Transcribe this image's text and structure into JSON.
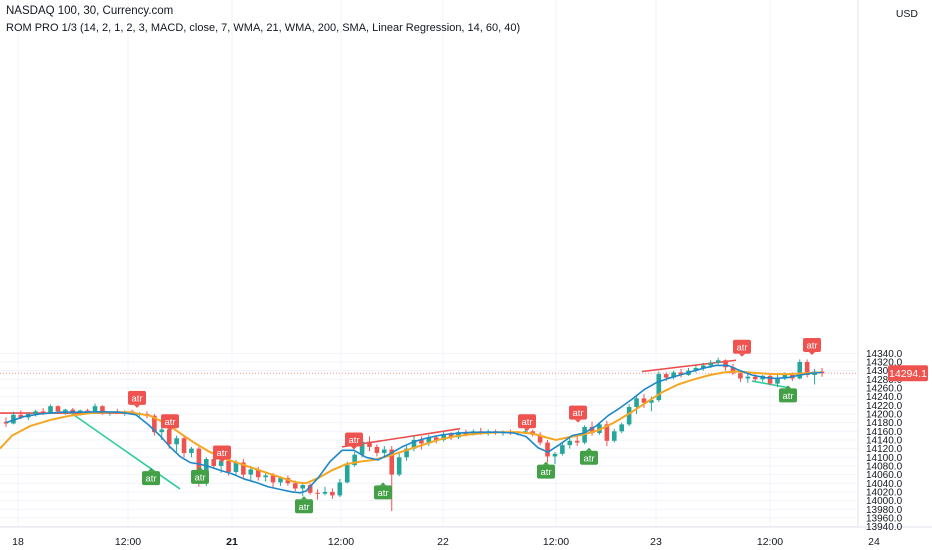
{
  "header": {
    "symbol_title": "NASDAQ 100, 30, Currency.com",
    "indicator_label": "ROM PRO 1/3 (14, 2, 1, 2, 3, MACD, close, 7, WMA, 21, WMA, 200, SMA, Linear Regression, 14, 60, 40)",
    "currency": "USD"
  },
  "colors": {
    "up": "#26a69a",
    "down": "#ef5350",
    "wma_fast": "#1e88c8",
    "wma_slow": "#f5a623",
    "grid": "#f0f3fa",
    "axis_text": "#131722",
    "price_line": "#ef5350",
    "atr_up_badge": "#43a047",
    "atr_down_badge": "#ef5350"
  },
  "chart_data": {
    "type": "candlestick",
    "timeframe": "30",
    "y_axis": {
      "ticks": [
        "13940.0",
        "13960.0",
        "13980.0",
        "14000.0",
        "14020.0",
        "14040.0",
        "14060.0",
        "14080.0",
        "14100.0",
        "14120.0",
        "14140.0",
        "14160.0",
        "14180.0",
        "14200.0",
        "14220.0",
        "14240.0",
        "14260.0",
        "14280.0",
        "14300.0",
        "14320.0",
        "14340.0"
      ],
      "range": [
        13940,
        14346
      ]
    },
    "x_axis": {
      "ticks": [
        {
          "label": "18",
          "bold": false
        },
        {
          "label": "12:00",
          "bold": false
        },
        {
          "label": "21",
          "bold": true
        },
        {
          "label": "12:00",
          "bold": false
        },
        {
          "label": "22",
          "bold": false
        },
        {
          "label": "12:00",
          "bold": false
        },
        {
          "label": "23",
          "bold": false
        },
        {
          "label": "12:00",
          "bold": false
        },
        {
          "label": "24",
          "bold": false
        }
      ]
    },
    "last_price": "14294.1",
    "candles": [
      [
        14182,
        14192,
        14170,
        14178
      ],
      [
        14178,
        14205,
        14176,
        14198
      ],
      [
        14198,
        14208,
        14188,
        14192
      ],
      [
        14192,
        14204,
        14186,
        14200
      ],
      [
        14200,
        14210,
        14194,
        14206
      ],
      [
        14206,
        14214,
        14198,
        14202
      ],
      [
        14202,
        14222,
        14200,
        14218
      ],
      [
        14218,
        14220,
        14200,
        14206
      ],
      [
        14206,
        14212,
        14198,
        14210
      ],
      [
        14210,
        14214,
        14202,
        14204
      ],
      [
        14204,
        14210,
        14196,
        14208
      ],
      [
        14208,
        14212,
        14200,
        14206
      ],
      [
        14206,
        14224,
        14204,
        14218
      ],
      [
        14218,
        14220,
        14198,
        14202
      ],
      [
        14202,
        14206,
        14196,
        14204
      ],
      [
        14204,
        14212,
        14200,
        14202
      ],
      [
        14202,
        14208,
        14196,
        14206
      ],
      [
        14206,
        14210,
        14198,
        14200
      ],
      [
        14200,
        14204,
        14194,
        14200
      ],
      [
        14200,
        14206,
        14190,
        14196
      ],
      [
        14196,
        14200,
        14150,
        14158
      ],
      [
        14158,
        14172,
        14140,
        14164
      ],
      [
        14164,
        14168,
        14120,
        14130
      ],
      [
        14130,
        14150,
        14112,
        14144
      ],
      [
        14144,
        14150,
        14100,
        14110
      ],
      [
        14110,
        14124,
        14100,
        14120
      ],
      [
        14120,
        14124,
        14032,
        14040
      ],
      [
        14040,
        14100,
        14034,
        14096
      ],
      [
        14096,
        14104,
        14074,
        14080
      ],
      [
        14080,
        14100,
        14064,
        14092
      ],
      [
        14092,
        14098,
        14058,
        14066
      ],
      [
        14066,
        14094,
        14060,
        14088
      ],
      [
        14088,
        14096,
        14052,
        14060
      ],
      [
        14060,
        14080,
        14046,
        14072
      ],
      [
        14072,
        14078,
        14046,
        14054
      ],
      [
        14054,
        14064,
        14044,
        14058
      ],
      [
        14058,
        14064,
        14030,
        14042
      ],
      [
        14042,
        14056,
        14034,
        14052
      ],
      [
        14052,
        14058,
        14034,
        14040
      ],
      [
        14040,
        14046,
        14022,
        14028
      ],
      [
        14028,
        14040,
        14010,
        14036
      ],
      [
        14036,
        14040,
        14014,
        14018
      ],
      [
        14018,
        14026,
        14002,
        14016
      ],
      [
        14016,
        14032,
        14012,
        14020
      ],
      [
        14020,
        14028,
        14004,
        14012
      ],
      [
        14012,
        14050,
        14008,
        14042
      ],
      [
        14042,
        14090,
        14040,
        14082
      ],
      [
        14082,
        14112,
        14078,
        14106
      ],
      [
        14106,
        14144,
        14100,
        14136
      ],
      [
        14136,
        14148,
        14114,
        14124
      ],
      [
        14124,
        14130,
        14102,
        14110
      ],
      [
        14110,
        14126,
        14098,
        14118
      ],
      [
        14118,
        14126,
        13976,
        14060
      ],
      [
        14060,
        14112,
        14056,
        14100
      ],
      [
        14100,
        14126,
        14092,
        14120
      ],
      [
        14120,
        14150,
        14114,
        14140
      ],
      [
        14140,
        14148,
        14118,
        14132
      ],
      [
        14132,
        14152,
        14126,
        14146
      ],
      [
        14146,
        14150,
        14132,
        14140
      ],
      [
        14140,
        14160,
        14136,
        14154
      ],
      [
        14154,
        14158,
        14140,
        14146
      ],
      [
        14146,
        14162,
        14142,
        14158
      ],
      [
        14158,
        14164,
        14148,
        14152
      ],
      [
        14152,
        14164,
        14150,
        14160
      ],
      [
        14160,
        14168,
        14152,
        14156
      ],
      [
        14156,
        14164,
        14150,
        14160
      ],
      [
        14160,
        14164,
        14152,
        14156
      ],
      [
        14156,
        14162,
        14150,
        14158
      ],
      [
        14158,
        14164,
        14152,
        14156
      ],
      [
        14156,
        14160,
        14150,
        14158
      ],
      [
        14158,
        14166,
        14154,
        14160
      ],
      [
        14160,
        14164,
        14148,
        14152
      ],
      [
        14152,
        14158,
        14128,
        14134
      ],
      [
        14134,
        14140,
        14088,
        14102
      ],
      [
        14102,
        14112,
        14084,
        14108
      ],
      [
        14108,
        14132,
        14104,
        14128
      ],
      [
        14128,
        14144,
        14120,
        14138
      ],
      [
        14138,
        14150,
        14126,
        14134
      ],
      [
        14134,
        14174,
        14130,
        14170
      ],
      [
        14170,
        14182,
        14150,
        14156
      ],
      [
        14156,
        14180,
        14152,
        14176
      ],
      [
        14176,
        14184,
        14126,
        14138
      ],
      [
        14138,
        14166,
        14134,
        14160
      ],
      [
        14160,
        14180,
        14156,
        14176
      ],
      [
        14176,
        14222,
        14172,
        14216
      ],
      [
        14216,
        14244,
        14200,
        14236
      ],
      [
        14236,
        14246,
        14214,
        14226
      ],
      [
        14226,
        14240,
        14206,
        14232
      ],
      [
        14232,
        14298,
        14228,
        14292
      ],
      [
        14292,
        14296,
        14276,
        14284
      ],
      [
        14284,
        14300,
        14280,
        14296
      ],
      [
        14296,
        14304,
        14284,
        14290
      ],
      [
        14290,
        14306,
        14288,
        14300
      ],
      [
        14300,
        14312,
        14296,
        14306
      ],
      [
        14306,
        14318,
        14300,
        14312
      ],
      [
        14312,
        14324,
        14306,
        14318
      ],
      [
        14318,
        14330,
        14312,
        14324
      ],
      [
        14324,
        14326,
        14300,
        14308
      ],
      [
        14308,
        14316,
        14290,
        14294
      ],
      [
        14294,
        14300,
        14274,
        14282
      ],
      [
        14282,
        14294,
        14272,
        14286
      ],
      [
        14286,
        14292,
        14276,
        14280
      ],
      [
        14280,
        14290,
        14274,
        14288
      ],
      [
        14288,
        14292,
        14266,
        14270
      ],
      [
        14270,
        14290,
        14262,
        14284
      ],
      [
        14284,
        14296,
        14278,
        14290
      ],
      [
        14290,
        14296,
        14276,
        14282
      ],
      [
        14282,
        14326,
        14280,
        14320
      ],
      [
        14320,
        14326,
        14284,
        14290
      ],
      [
        14290,
        14304,
        14268,
        14298
      ],
      [
        14298,
        14306,
        14286,
        14294
      ]
    ],
    "wma_fast": [
      [
        6,
        14180
      ],
      [
        24,
        14194
      ],
      [
        40,
        14200
      ],
      [
        60,
        14204
      ],
      [
        80,
        14204
      ],
      [
        100,
        14205
      ],
      [
        120,
        14204
      ],
      [
        136,
        14198
      ],
      [
        148,
        14176
      ],
      [
        160,
        14150
      ],
      [
        170,
        14124
      ],
      [
        180,
        14102
      ],
      [
        190,
        14088
      ],
      [
        200,
        14084
      ],
      [
        210,
        14078
      ],
      [
        220,
        14070
      ],
      [
        232,
        14062
      ],
      [
        244,
        14050
      ],
      [
        256,
        14042
      ],
      [
        268,
        14032
      ],
      [
        280,
        14026
      ],
      [
        292,
        14020
      ],
      [
        300,
        14018
      ],
      [
        306,
        14022
      ],
      [
        318,
        14052
      ],
      [
        330,
        14090
      ],
      [
        342,
        14116
      ],
      [
        354,
        14116
      ],
      [
        366,
        14100
      ],
      [
        378,
        14094
      ],
      [
        390,
        14108
      ],
      [
        402,
        14124
      ],
      [
        414,
        14136
      ],
      [
        426,
        14144
      ],
      [
        438,
        14150
      ],
      [
        450,
        14154
      ],
      [
        466,
        14157
      ],
      [
        482,
        14158
      ],
      [
        498,
        14158
      ],
      [
        514,
        14156
      ],
      [
        526,
        14148
      ],
      [
        538,
        14122
      ],
      [
        548,
        14112
      ],
      [
        560,
        14130
      ],
      [
        572,
        14150
      ],
      [
        584,
        14156
      ],
      [
        596,
        14172
      ],
      [
        608,
        14196
      ],
      [
        620,
        14214
      ],
      [
        632,
        14234
      ],
      [
        644,
        14256
      ],
      [
        656,
        14272
      ],
      [
        668,
        14282
      ],
      [
        680,
        14290
      ],
      [
        692,
        14298
      ],
      [
        704,
        14306
      ],
      [
        716,
        14312
      ],
      [
        728,
        14312
      ],
      [
        740,
        14300
      ],
      [
        752,
        14290
      ],
      [
        764,
        14284
      ],
      [
        776,
        14282
      ],
      [
        788,
        14284
      ],
      [
        800,
        14290
      ],
      [
        812,
        14294
      ],
      [
        822,
        14296
      ]
    ],
    "wma_slow": [
      [
        0,
        14120
      ],
      [
        12,
        14150
      ],
      [
        30,
        14172
      ],
      [
        50,
        14186
      ],
      [
        70,
        14196
      ],
      [
        90,
        14202
      ],
      [
        110,
        14204
      ],
      [
        130,
        14204
      ],
      [
        150,
        14196
      ],
      [
        166,
        14178
      ],
      [
        180,
        14156
      ],
      [
        194,
        14134
      ],
      [
        210,
        14112
      ],
      [
        226,
        14096
      ],
      [
        244,
        14082
      ],
      [
        262,
        14068
      ],
      [
        280,
        14054
      ],
      [
        296,
        14042
      ],
      [
        306,
        14040
      ],
      [
        318,
        14052
      ],
      [
        332,
        14070
      ],
      [
        346,
        14084
      ],
      [
        360,
        14090
      ],
      [
        374,
        14094
      ],
      [
        390,
        14104
      ],
      [
        406,
        14116
      ],
      [
        422,
        14128
      ],
      [
        438,
        14140
      ],
      [
        454,
        14148
      ],
      [
        470,
        14153
      ],
      [
        486,
        14156
      ],
      [
        502,
        14158
      ],
      [
        518,
        14158
      ],
      [
        534,
        14154
      ],
      [
        546,
        14146
      ],
      [
        556,
        14140
      ],
      [
        568,
        14146
      ],
      [
        582,
        14152
      ],
      [
        598,
        14162
      ],
      [
        614,
        14180
      ],
      [
        630,
        14202
      ],
      [
        646,
        14226
      ],
      [
        662,
        14250
      ],
      [
        678,
        14268
      ],
      [
        694,
        14280
      ],
      [
        710,
        14290
      ],
      [
        724,
        14296
      ],
      [
        736,
        14298
      ],
      [
        748,
        14296
      ],
      [
        760,
        14294
      ],
      [
        774,
        14292
      ],
      [
        790,
        14292
      ],
      [
        806,
        14294
      ],
      [
        822,
        14296
      ]
    ],
    "regression_lines": [
      {
        "color": "down",
        "points": [
          [
            0,
            14202
          ],
          [
            134,
            14202
          ]
        ]
      },
      {
        "color": "up",
        "points": [
          [
            70,
            14204
          ],
          [
            180,
            14027
          ]
        ]
      },
      {
        "color": "down",
        "points": [
          [
            342,
            14124
          ],
          [
            460,
            14166
          ]
        ]
      },
      {
        "color": "down",
        "points": [
          [
            642,
            14298
          ],
          [
            736,
            14324
          ]
        ]
      },
      {
        "color": "up",
        "points": [
          [
            752,
            14276
          ],
          [
            790,
            14260
          ]
        ]
      }
    ],
    "atr_badges": [
      {
        "bar": 0,
        "text": "atr",
        "kind": "down",
        "cx": 137,
        "price": 14214,
        "pos": "above"
      },
      {
        "bar": 0,
        "text": "atr",
        "kind": "down",
        "cx": 170,
        "price": 14160,
        "pos": "above"
      },
      {
        "bar": 0,
        "text": "atr",
        "kind": "up",
        "cx": 151,
        "price": 14075,
        "pos": "below"
      },
      {
        "bar": 0,
        "text": "atr",
        "kind": "up",
        "cx": 200,
        "price": 14078,
        "pos": "below"
      },
      {
        "bar": 0,
        "text": "atr",
        "kind": "down",
        "cx": 222,
        "price": 14088,
        "pos": "above"
      },
      {
        "bar": 0,
        "text": "atr",
        "kind": "up",
        "cx": 304,
        "price": 14010,
        "pos": "below"
      },
      {
        "bar": 0,
        "text": "atr",
        "kind": "up",
        "cx": 383,
        "price": 14042,
        "pos": "below"
      },
      {
        "bar": 0,
        "text": "atr",
        "kind": "down",
        "cx": 354,
        "price": 14118,
        "pos": "above"
      },
      {
        "bar": 0,
        "text": "atr",
        "kind": "down",
        "cx": 527,
        "price": 14160,
        "pos": "above"
      },
      {
        "bar": 0,
        "text": "atr",
        "kind": "up",
        "cx": 546,
        "price": 14090,
        "pos": "below"
      },
      {
        "bar": 0,
        "text": "atr",
        "kind": "down",
        "cx": 578,
        "price": 14180,
        "pos": "above"
      },
      {
        "bar": 0,
        "text": "atr",
        "kind": "up",
        "cx": 589,
        "price": 14122,
        "pos": "below"
      },
      {
        "bar": 0,
        "text": "atr",
        "kind": "down",
        "cx": 742,
        "price": 14332,
        "pos": "above"
      },
      {
        "bar": 0,
        "text": "atr",
        "kind": "down",
        "cx": 812,
        "price": 14336,
        "pos": "above"
      },
      {
        "bar": 0,
        "text": "atr",
        "kind": "up",
        "cx": 788,
        "price": 14266,
        "pos": "below"
      }
    ]
  }
}
